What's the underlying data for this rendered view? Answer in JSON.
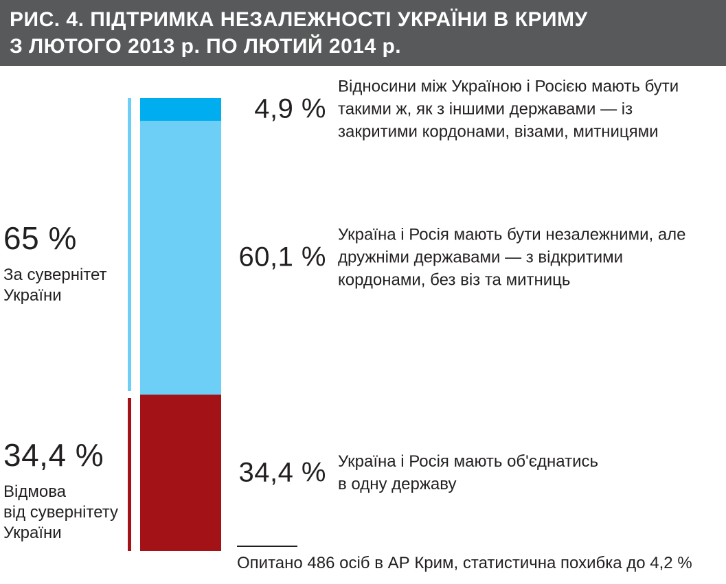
{
  "header": {
    "title_line1": "РИС. 4. ПІДТРИМКА НЕЗАЛЕЖНОСТІ УКРАЇНИ В КРИМУ",
    "title_line2": "З ЛЮТОГО 2013 р. ПО ЛЮТИЙ 2014 р."
  },
  "colors": {
    "header_bg": "#58595B",
    "bright_blue": "#00AEEF",
    "light_blue": "#6DCFF6",
    "dark_red": "#A31217",
    "text": "#231F20"
  },
  "chart_data": {
    "type": "bar",
    "subtype": "single-stacked-column",
    "title": "РИС. 4. ПІДТРИМКА НЕЗАЛЕЖНОСТІ УКРАЇНИ В КРИМУ З ЛЮТОГО 2013 р. ПО ЛЮТИЙ 2014 р.",
    "unit": "%",
    "ylim": [
      0,
      100
    ],
    "legend_position": "right",
    "grid": false,
    "segments": [
      {
        "value": 4.9,
        "value_label": "4,9 %",
        "color": "#00AEEF",
        "description": "Відносини між Україною і Росією мають бути\nтакими ж, як з іншими державами — із\nзакритими кордонами, візами, митницями"
      },
      {
        "value": 60.1,
        "value_label": "60,1 %",
        "color": "#6DCFF6",
        "description": "Україна і Росія мають бути незалежними, але\nдружніми державами — з відкритими\nкордонами, без віз та митниць"
      },
      {
        "value": 34.4,
        "value_label": "34,4 %",
        "color": "#A31217",
        "description": "Україна і Росія мають об'єднатись\nв одну державу"
      }
    ],
    "groups": [
      {
        "value": 65,
        "value_label": "65 %",
        "label": "За сувернітет\nУкраїни",
        "color": "#6DCFF6"
      },
      {
        "value": 34.4,
        "value_label": "34,4 %",
        "label": "Відмова\nвід сувернітету\nУкраїни",
        "color": "#A31217"
      }
    ],
    "footnote": "Опитано 486 осіб в АР Крим, статистична похибка до 4,2 %"
  }
}
